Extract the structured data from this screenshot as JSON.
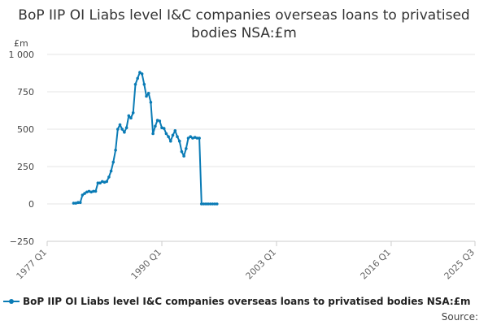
{
  "title": "BoP IIP OI Liabs level I&C companies overseas loans to privatised bodies NSA:£m",
  "unit_label": "£m",
  "source_label": "Source:",
  "colors": {
    "series": "#0a7bb5",
    "grid": "#e6e6e6",
    "axis": "#cccccc"
  },
  "chart_data": {
    "type": "line",
    "title": "BoP IIP OI Liabs level I&C companies overseas loans to privatised bodies NSA:£m",
    "ylabel": "£m",
    "xlabel": "",
    "ylim": [
      -250,
      1000
    ],
    "yticks": [
      -250,
      0,
      250,
      500,
      750,
      1000
    ],
    "ytick_labels": [
      "−250",
      "0",
      "250",
      "500",
      "750",
      "1 000"
    ],
    "xlim": [
      "1977 Q1",
      "2025 Q3"
    ],
    "xticks": [
      "1977 Q1",
      "1990 Q1",
      "2003 Q1",
      "2016 Q1",
      "2025 Q3"
    ],
    "grid": true,
    "legend_position": "bottom",
    "series": [
      {
        "name": "BoP IIP OI Liabs level I&C companies overseas loans to privatised bodies NSA:£m",
        "x": [
          "1980 Q1",
          "1980 Q2",
          "1980 Q3",
          "1980 Q4",
          "1981 Q1",
          "1981 Q2",
          "1981 Q3",
          "1981 Q4",
          "1982 Q1",
          "1982 Q2",
          "1982 Q3",
          "1982 Q4",
          "1983 Q1",
          "1983 Q2",
          "1983 Q3",
          "1983 Q4",
          "1984 Q1",
          "1984 Q2",
          "1984 Q3",
          "1984 Q4",
          "1985 Q1",
          "1985 Q2",
          "1985 Q3",
          "1985 Q4",
          "1986 Q1",
          "1986 Q2",
          "1986 Q3",
          "1986 Q4",
          "1987 Q1",
          "1987 Q2",
          "1987 Q3",
          "1987 Q4",
          "1988 Q1",
          "1988 Q2",
          "1988 Q3",
          "1988 Q4",
          "1989 Q1",
          "1989 Q2",
          "1989 Q3",
          "1989 Q4",
          "1990 Q1",
          "1990 Q2",
          "1990 Q3",
          "1990 Q4",
          "1991 Q1",
          "1991 Q2",
          "1991 Q3",
          "1991 Q4",
          "1992 Q1",
          "1992 Q2",
          "1992 Q3",
          "1992 Q4",
          "1993 Q1",
          "1993 Q2",
          "1993 Q3",
          "1993 Q4",
          "1994 Q1",
          "1994 Q2",
          "1994 Q3",
          "1994 Q4",
          "1995 Q1",
          "1995 Q2",
          "1995 Q3",
          "1995 Q4",
          "1996 Q1",
          "1996 Q2"
        ],
        "values": [
          5,
          5,
          10,
          10,
          60,
          70,
          80,
          85,
          80,
          85,
          85,
          140,
          140,
          150,
          145,
          150,
          180,
          220,
          280,
          360,
          500,
          530,
          500,
          480,
          510,
          590,
          575,
          610,
          800,
          840,
          880,
          870,
          800,
          720,
          740,
          680,
          470,
          520,
          560,
          555,
          510,
          505,
          470,
          450,
          420,
          460,
          490,
          450,
          420,
          350,
          320,
          370,
          440,
          450,
          440,
          445,
          440,
          440,
          0,
          0,
          0,
          0,
          0,
          0,
          0,
          0
        ]
      }
    ]
  }
}
